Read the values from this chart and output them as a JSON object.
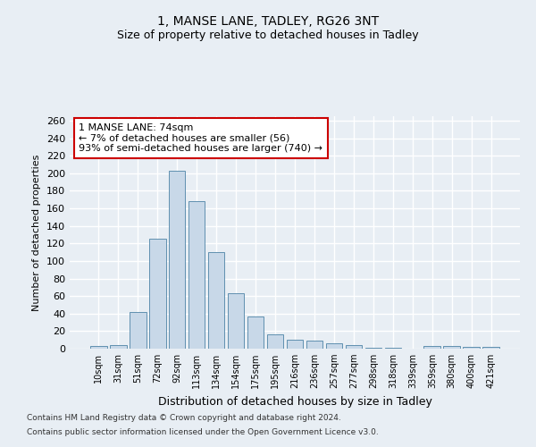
{
  "title1": "1, MANSE LANE, TADLEY, RG26 3NT",
  "title2": "Size of property relative to detached houses in Tadley",
  "xlabel": "Distribution of detached houses by size in Tadley",
  "ylabel": "Number of detached properties",
  "categories": [
    "10sqm",
    "31sqm",
    "51sqm",
    "72sqm",
    "92sqm",
    "113sqm",
    "134sqm",
    "154sqm",
    "175sqm",
    "195sqm",
    "216sqm",
    "236sqm",
    "257sqm",
    "277sqm",
    "298sqm",
    "318sqm",
    "339sqm",
    "359sqm",
    "380sqm",
    "400sqm",
    "421sqm"
  ],
  "values": [
    3,
    4,
    42,
    125,
    203,
    168,
    110,
    63,
    37,
    16,
    10,
    9,
    6,
    4,
    1,
    1,
    0,
    3,
    3,
    2,
    2
  ],
  "bar_color": "#c8d8e8",
  "bar_edge_color": "#6090b0",
  "annotation_text": "1 MANSE LANE: 74sqm\n← 7% of detached houses are smaller (56)\n93% of semi-detached houses are larger (740) →",
  "annotation_box_color": "#ffffff",
  "annotation_box_edge_color": "#cc0000",
  "background_color": "#e8eef4",
  "grid_color": "#ffffff",
  "footer_line1": "Contains HM Land Registry data © Crown copyright and database right 2024.",
  "footer_line2": "Contains public sector information licensed under the Open Government Licence v3.0.",
  "ylim": [
    0,
    265
  ],
  "yticks": [
    0,
    20,
    40,
    60,
    80,
    100,
    120,
    140,
    160,
    180,
    200,
    220,
    240,
    260
  ]
}
